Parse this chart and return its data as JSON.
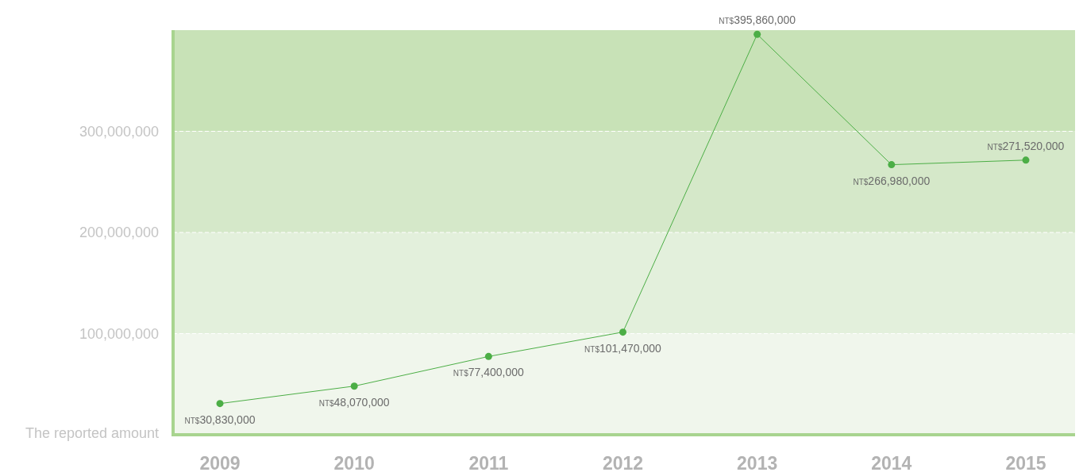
{
  "chart_data": {
    "type": "line",
    "categories": [
      "2009",
      "2010",
      "2011",
      "2012",
      "2013",
      "2014",
      "2015"
    ],
    "series": [
      {
        "color": "#4cae46",
        "values": [
          30830000,
          48070000,
          77400000,
          101470000,
          395860000,
          266980000,
          271520000
        ]
      }
    ],
    "value_labels": [
      "NT$30,830,000",
      "NT$48,070,000",
      "NT$77,400,000",
      "NT$101,470,000",
      "NT$395,860,000",
      "NT$266,980,000",
      "NT$271,520,000"
    ],
    "ylim": [
      0,
      400000000
    ],
    "yticks": [
      {
        "value": 0,
        "label": "The reported amount"
      },
      {
        "value": 100000000,
        "label": "100,000,000"
      },
      {
        "value": 200000000,
        "label": "200,000,000"
      },
      {
        "value": 300000000,
        "label": "300,000,000"
      }
    ],
    "bands": [
      {
        "axis": "y",
        "from": 0,
        "to": 100000000,
        "color": "#f0f6ec"
      },
      {
        "axis": "y",
        "from": 100000000,
        "to": 200000000,
        "color": "#e3f0dc"
      },
      {
        "axis": "y",
        "from": 200000000,
        "to": 300000000,
        "color": "#d5e8c9"
      },
      {
        "axis": "y",
        "from": 300000000,
        "to": 400000000,
        "color": "#c8e2b7"
      }
    ],
    "grid": "y",
    "marker": "circle",
    "line_style": "solid"
  }
}
